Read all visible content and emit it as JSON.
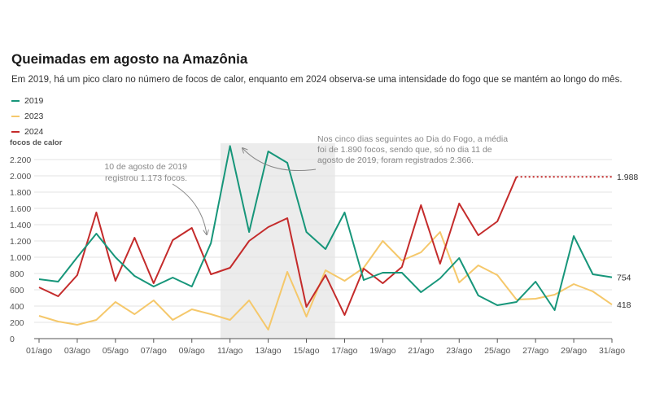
{
  "title": "Queimadas em agosto na Amazônia",
  "subtitle": "Em 2019, há um pico claro no número de focos de calor, enquanto em 2024 observa-se uma intensidade do fogo que se mantém ao longo do mês.",
  "colors": {
    "s2019": "#17967a",
    "s2023": "#f5c86b",
    "s2024": "#c42b2b",
    "highlight": "#ececec"
  },
  "legend": [
    {
      "label": "2019",
      "color": "#17967a"
    },
    {
      "label": "2023",
      "color": "#f5c86b"
    },
    {
      "label": "2024",
      "color": "#c42b2b"
    }
  ],
  "annotations": {
    "left": [
      "10 de agosto de 2019",
      "registrou 1.173 focos."
    ],
    "right": [
      "Nos cinco dias seguintes ao Dia do Fogo, a média",
      "foi de 1.890 focos, sendo que, só no dia 11 de",
      "agosto de 2019, foram registrados 2.366."
    ]
  },
  "chart_data": {
    "type": "line",
    "ylabel": "focos de calor",
    "ylim": [
      0,
      2400
    ],
    "yticks": [
      0,
      200,
      400,
      600,
      800,
      1000,
      1200,
      1400,
      1600,
      1800,
      2000,
      2200
    ],
    "ytick_labels": [
      "0",
      "200",
      "400",
      "600",
      "800",
      "1.000",
      "1.200",
      "1.400",
      "1.600",
      "1.800",
      "2.000",
      "2.200"
    ],
    "x": [
      1,
      2,
      3,
      4,
      5,
      6,
      7,
      8,
      9,
      10,
      11,
      12,
      13,
      14,
      15,
      16,
      17,
      18,
      19,
      20,
      21,
      22,
      23,
      24,
      25,
      26,
      27,
      28,
      29,
      30,
      31
    ],
    "xticks": [
      1,
      3,
      5,
      7,
      9,
      11,
      13,
      15,
      17,
      19,
      21,
      23,
      25,
      27,
      29,
      31
    ],
    "xtick_labels": [
      "01/ago",
      "03/ago",
      "05/ago",
      "07/ago",
      "09/ago",
      "11/ago",
      "13/ago",
      "15/ago",
      "17/ago",
      "19/ago",
      "21/ago",
      "23/ago",
      "25/ago",
      "27/ago",
      "29/ago",
      "31/ago"
    ],
    "highlight_range": [
      10.5,
      16.5
    ],
    "series": [
      {
        "name": "2019",
        "color": "#17967a",
        "values": [
          730,
          700,
          1000,
          1290,
          1000,
          770,
          640,
          750,
          640,
          1173,
          2366,
          1310,
          2300,
          2160,
          1310,
          1100,
          1550,
          720,
          810,
          810,
          570,
          740,
          990,
          530,
          410,
          450,
          700,
          350,
          1260,
          790,
          754
        ]
      },
      {
        "name": "2023",
        "color": "#f5c86b",
        "values": [
          280,
          210,
          170,
          230,
          450,
          300,
          470,
          230,
          360,
          300,
          230,
          470,
          110,
          820,
          270,
          840,
          710,
          870,
          1200,
          960,
          1060,
          1310,
          690,
          900,
          780,
          480,
          490,
          540,
          670,
          580,
          418
        ]
      },
      {
        "name": "2024",
        "color": "#c42b2b",
        "values": [
          630,
          520,
          780,
          1550,
          710,
          1240,
          680,
          1210,
          1360,
          790,
          870,
          1200,
          1370,
          1480,
          390,
          780,
          290,
          860,
          680,
          880,
          1640,
          920,
          1660,
          1270,
          1440,
          1988,
          null,
          null,
          null,
          null,
          null
        ]
      }
    ],
    "projection": {
      "series": "2024",
      "from_x": 26,
      "to_x": 31,
      "value": 1988
    },
    "end_labels": [
      {
        "series": "2024",
        "text": "1.988"
      },
      {
        "series": "2019",
        "text": "754"
      },
      {
        "series": "2023",
        "text": "418"
      }
    ]
  }
}
